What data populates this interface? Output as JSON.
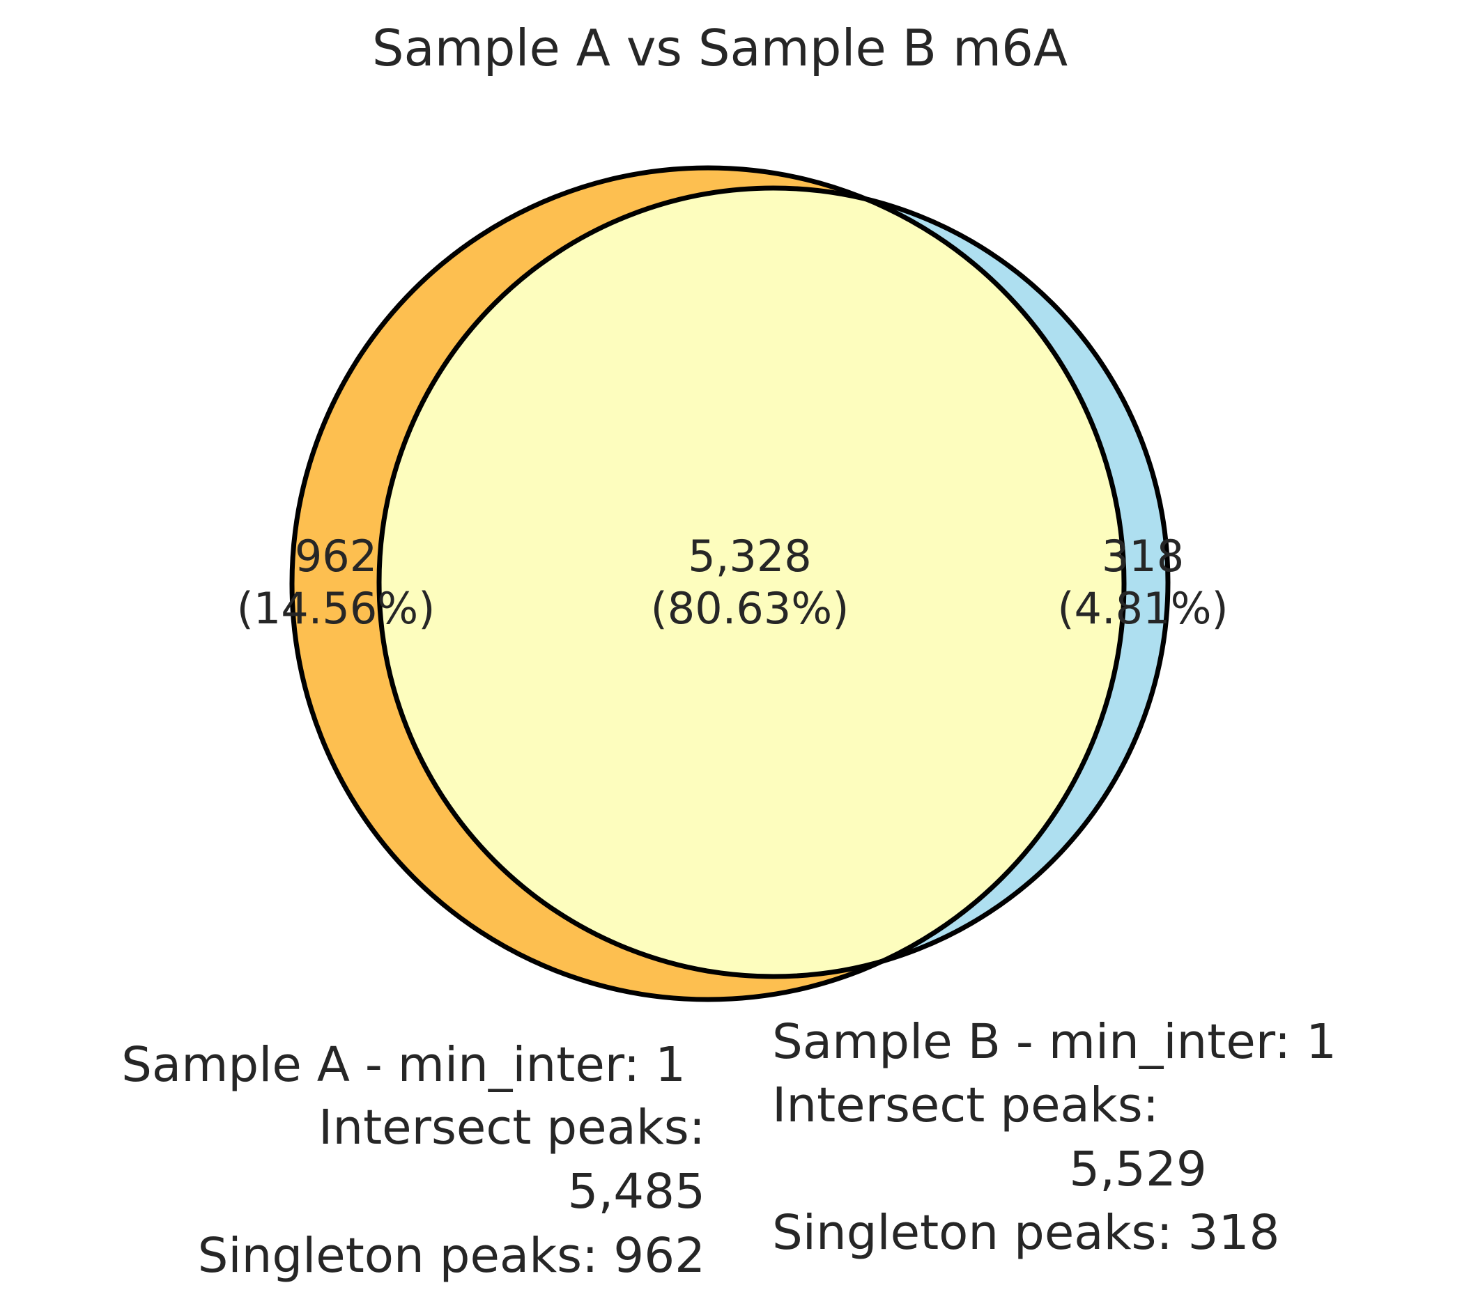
{
  "chart_data": {
    "type": "venn",
    "title": "Sample A vs Sample B m6A",
    "regions": [
      "A only",
      "A and B",
      "B only"
    ],
    "values": [
      962,
      5328,
      318
    ],
    "value_labels": [
      "962",
      "5,328",
      "318"
    ],
    "percents": [
      14.56,
      80.63,
      4.81
    ],
    "percent_labels": [
      "(14.56%)",
      "(80.63%)",
      "(4.81%)"
    ],
    "colors": [
      "#fdbf50",
      "#fdfdbe",
      "#aedff0"
    ],
    "annotations": [
      {
        "lines": [
          "Sample A - min_inter: 1",
          "Intersect peaks:",
          "5,485",
          "Singleton peaks: 962"
        ]
      },
      {
        "lines": [
          "Sample B - min_inter: 1",
          "Intersect peaks:",
          "5,529",
          "Singleton peaks: 318"
        ]
      }
    ]
  }
}
